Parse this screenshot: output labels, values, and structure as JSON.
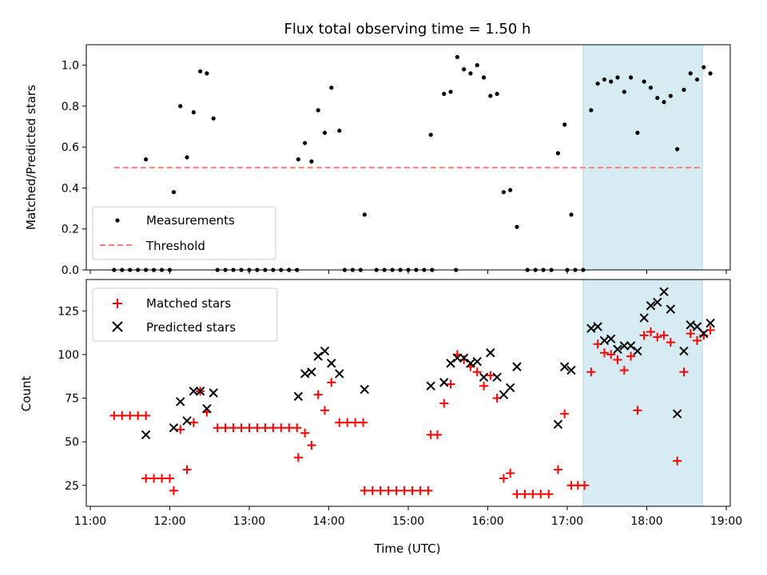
{
  "chart_data": [
    {
      "type": "scatter",
      "title": "Flux total observing time = 1.50 h",
      "xlabel": "",
      "ylabel": "Matched/Predicted stars",
      "xlim_hours": [
        10.95,
        19.05
      ],
      "ylim": [
        0,
        1.1
      ],
      "yticks": [
        0.0,
        0.2,
        0.4,
        0.6,
        0.8,
        1.0
      ],
      "yticklabels": [
        "0.0",
        "0.2",
        "0.4",
        "0.6",
        "0.8",
        "1.0"
      ],
      "highlight_span": {
        "start": "17:12",
        "end": "18:42",
        "color": "#add8e6"
      },
      "threshold_line": {
        "name": "Threshold",
        "y": 0.5,
        "x_start": "11:18",
        "x_end": "18:42",
        "color": "#ff7f7f",
        "style": "dashed"
      },
      "legend": {
        "position": "lower left",
        "entries": [
          "Measurements",
          "Threshold"
        ]
      },
      "series": [
        {
          "name": "Measurements",
          "marker": "dot",
          "color": "#000000",
          "points": [
            [
              "11:18",
              0
            ],
            [
              "11:24",
              0
            ],
            [
              "11:30",
              0
            ],
            [
              "11:36",
              0
            ],
            [
              "11:42",
              0
            ],
            [
              "11:42",
              0.54
            ],
            [
              "11:48",
              0
            ],
            [
              "11:54",
              0
            ],
            [
              "12:00",
              0
            ],
            [
              "12:03",
              0.38
            ],
            [
              "12:08",
              0.8
            ],
            [
              "12:13",
              0.55
            ],
            [
              "12:18",
              0.77
            ],
            [
              "12:23",
              0.97
            ],
            [
              "12:28",
              0.96
            ],
            [
              "12:33",
              0.74
            ],
            [
              "12:36",
              0
            ],
            [
              "12:42",
              0
            ],
            [
              "12:48",
              0
            ],
            [
              "12:54",
              0
            ],
            [
              "13:00",
              0
            ],
            [
              "13:06",
              0
            ],
            [
              "13:12",
              0
            ],
            [
              "13:18",
              0
            ],
            [
              "13:24",
              0
            ],
            [
              "13:30",
              0
            ],
            [
              "13:36",
              0
            ],
            [
              "13:37",
              0.54
            ],
            [
              "13:42",
              0.62
            ],
            [
              "13:47",
              0.53
            ],
            [
              "13:52",
              0.78
            ],
            [
              "13:57",
              0.67
            ],
            [
              "14:02",
              0.89
            ],
            [
              "14:08",
              0.68
            ],
            [
              "14:12",
              0
            ],
            [
              "14:18",
              0
            ],
            [
              "14:24",
              0
            ],
            [
              "14:27",
              0.27
            ],
            [
              "14:36",
              0
            ],
            [
              "14:42",
              0
            ],
            [
              "14:48",
              0
            ],
            [
              "14:54",
              0
            ],
            [
              "15:00",
              0
            ],
            [
              "15:06",
              0
            ],
            [
              "15:12",
              0
            ],
            [
              "15:18",
              0
            ],
            [
              "15:17",
              0.66
            ],
            [
              "15:27",
              0.86
            ],
            [
              "15:32",
              0.87
            ],
            [
              "15:36",
              0
            ],
            [
              "15:37",
              1.04
            ],
            [
              "15:42",
              0.98
            ],
            [
              "15:47",
              0.96
            ],
            [
              "15:52",
              1.0
            ],
            [
              "15:57",
              0.94
            ],
            [
              "16:02",
              0.85
            ],
            [
              "16:07",
              0.86
            ],
            [
              "16:12",
              0.38
            ],
            [
              "16:17",
              0.39
            ],
            [
              "16:22",
              0.21
            ],
            [
              "16:30",
              0
            ],
            [
              "16:36",
              0
            ],
            [
              "16:42",
              0
            ],
            [
              "16:48",
              0
            ],
            [
              "16:53",
              0.57
            ],
            [
              "16:58",
              0.71
            ],
            [
              "17:00",
              0
            ],
            [
              "17:03",
              0.27
            ],
            [
              "17:06",
              0
            ],
            [
              "17:12",
              0
            ],
            [
              "17:18",
              0.78
            ],
            [
              "17:23",
              0.91
            ],
            [
              "17:28",
              0.93
            ],
            [
              "17:33",
              0.92
            ],
            [
              "17:38",
              0.94
            ],
            [
              "17:43",
              0.87
            ],
            [
              "17:48",
              0.94
            ],
            [
              "17:53",
              0.67
            ],
            [
              "17:58",
              0.92
            ],
            [
              "18:03",
              0.89
            ],
            [
              "18:08",
              0.84
            ],
            [
              "18:13",
              0.82
            ],
            [
              "18:18",
              0.85
            ],
            [
              "18:23",
              0.59
            ],
            [
              "18:28",
              0.88
            ],
            [
              "18:33",
              0.96
            ],
            [
              "18:38",
              0.93
            ],
            [
              "18:43",
              0.99
            ],
            [
              "18:48",
              0.96
            ]
          ]
        }
      ]
    },
    {
      "type": "scatter",
      "title": "",
      "xlabel": "Time (UTC)",
      "ylabel": "Count",
      "xlim_hours": [
        10.95,
        19.05
      ],
      "ylim": [
        13,
        143
      ],
      "yticks": [
        25,
        50,
        75,
        100,
        125
      ],
      "yticklabels": [
        "25",
        "50",
        "75",
        "100",
        "125"
      ],
      "xticks": [
        "11:00",
        "12:00",
        "13:00",
        "14:00",
        "15:00",
        "16:00",
        "17:00",
        "18:00",
        "19:00"
      ],
      "highlight_span": {
        "start": "17:12",
        "end": "18:42",
        "color": "#add8e6"
      },
      "legend": {
        "position": "upper left",
        "entries": [
          "Matched stars",
          "Predicted stars"
        ]
      },
      "series": [
        {
          "name": "Matched stars",
          "marker": "plus",
          "color": "#ff0000",
          "points": [
            [
              "11:18",
              65
            ],
            [
              "11:24",
              65
            ],
            [
              "11:30",
              65
            ],
            [
              "11:36",
              65
            ],
            [
              "11:42",
              65
            ],
            [
              "11:42",
              29
            ],
            [
              "11:48",
              29
            ],
            [
              "11:54",
              29
            ],
            [
              "12:00",
              29
            ],
            [
              "12:03",
              22
            ],
            [
              "12:08",
              57
            ],
            [
              "12:13",
              34
            ],
            [
              "12:18",
              61
            ],
            [
              "12:23",
              79
            ],
            [
              "12:28",
              67
            ],
            [
              "12:36",
              58
            ],
            [
              "12:42",
              58
            ],
            [
              "12:48",
              58
            ],
            [
              "12:54",
              58
            ],
            [
              "13:00",
              58
            ],
            [
              "13:06",
              58
            ],
            [
              "13:12",
              58
            ],
            [
              "13:18",
              58
            ],
            [
              "13:24",
              58
            ],
            [
              "13:30",
              58
            ],
            [
              "13:36",
              58
            ],
            [
              "13:37",
              41
            ],
            [
              "13:42",
              55
            ],
            [
              "13:47",
              48
            ],
            [
              "13:52",
              77
            ],
            [
              "13:57",
              68
            ],
            [
              "14:02",
              84
            ],
            [
              "14:08",
              61
            ],
            [
              "14:14",
              61
            ],
            [
              "14:20",
              61
            ],
            [
              "14:26",
              61
            ],
            [
              "14:27",
              22
            ],
            [
              "14:33",
              22
            ],
            [
              "14:39",
              22
            ],
            [
              "14:45",
              22
            ],
            [
              "14:51",
              22
            ],
            [
              "14:57",
              22
            ],
            [
              "15:03",
              22
            ],
            [
              "15:09",
              22
            ],
            [
              "15:15",
              22
            ],
            [
              "15:17",
              54
            ],
            [
              "15:22",
              54
            ],
            [
              "15:27",
              72
            ],
            [
              "15:32",
              83
            ],
            [
              "15:37",
              100
            ],
            [
              "15:42",
              97
            ],
            [
              "15:47",
              93
            ],
            [
              "15:52",
              90
            ],
            [
              "15:57",
              82
            ],
            [
              "16:02",
              88
            ],
            [
              "16:07",
              75
            ],
            [
              "16:12",
              29
            ],
            [
              "16:17",
              32
            ],
            [
              "16:22",
              20
            ],
            [
              "16:28",
              20
            ],
            [
              "16:34",
              20
            ],
            [
              "16:40",
              20
            ],
            [
              "16:46",
              20
            ],
            [
              "16:53",
              34
            ],
            [
              "16:58",
              66
            ],
            [
              "17:03",
              25
            ],
            [
              "17:08",
              25
            ],
            [
              "17:13",
              25
            ],
            [
              "17:18",
              90
            ],
            [
              "17:23",
              106
            ],
            [
              "17:28",
              101
            ],
            [
              "17:33",
              100
            ],
            [
              "17:38",
              97
            ],
            [
              "17:43",
              91
            ],
            [
              "17:48",
              99
            ],
            [
              "17:53",
              68
            ],
            [
              "17:58",
              111
            ],
            [
              "18:03",
              113
            ],
            [
              "18:08",
              110
            ],
            [
              "18:13",
              111
            ],
            [
              "18:18",
              107
            ],
            [
              "18:23",
              39
            ],
            [
              "18:28",
              90
            ],
            [
              "18:33",
              112
            ],
            [
              "18:38",
              108
            ],
            [
              "18:43",
              111
            ],
            [
              "18:48",
              114
            ]
          ]
        },
        {
          "name": "Predicted stars",
          "marker": "x",
          "color": "#000000",
          "points": [
            [
              "11:42",
              54
            ],
            [
              "12:03",
              58
            ],
            [
              "12:08",
              73
            ],
            [
              "12:13",
              62
            ],
            [
              "12:18",
              79
            ],
            [
              "12:23",
              79
            ],
            [
              "12:28",
              69
            ],
            [
              "12:33",
              78
            ],
            [
              "13:37",
              76
            ],
            [
              "13:42",
              89
            ],
            [
              "13:47",
              90
            ],
            [
              "13:52",
              99
            ],
            [
              "13:57",
              102
            ],
            [
              "14:02",
              95
            ],
            [
              "14:08",
              89
            ],
            [
              "14:27",
              80
            ],
            [
              "15:17",
              82
            ],
            [
              "15:27",
              84
            ],
            [
              "15:32",
              95
            ],
            [
              "15:37",
              98
            ],
            [
              "15:42",
              98
            ],
            [
              "15:47",
              95
            ],
            [
              "15:52",
              96
            ],
            [
              "15:57",
              87
            ],
            [
              "16:02",
              101
            ],
            [
              "16:07",
              87
            ],
            [
              "16:12",
              77
            ],
            [
              "16:17",
              81
            ],
            [
              "16:22",
              93
            ],
            [
              "16:53",
              60
            ],
            [
              "16:58",
              93
            ],
            [
              "17:03",
              91
            ],
            [
              "17:18",
              115
            ],
            [
              "17:23",
              116
            ],
            [
              "17:28",
              108
            ],
            [
              "17:33",
              109
            ],
            [
              "17:38",
              103
            ],
            [
              "17:43",
              105
            ],
            [
              "17:48",
              105
            ],
            [
              "17:53",
              102
            ],
            [
              "17:58",
              121
            ],
            [
              "18:03",
              128
            ],
            [
              "18:08",
              130
            ],
            [
              "18:13",
              136
            ],
            [
              "18:18",
              126
            ],
            [
              "18:23",
              66
            ],
            [
              "18:28",
              102
            ],
            [
              "18:33",
              117
            ],
            [
              "18:38",
              116
            ],
            [
              "18:43",
              112
            ],
            [
              "18:48",
              118
            ]
          ]
        }
      ]
    }
  ]
}
